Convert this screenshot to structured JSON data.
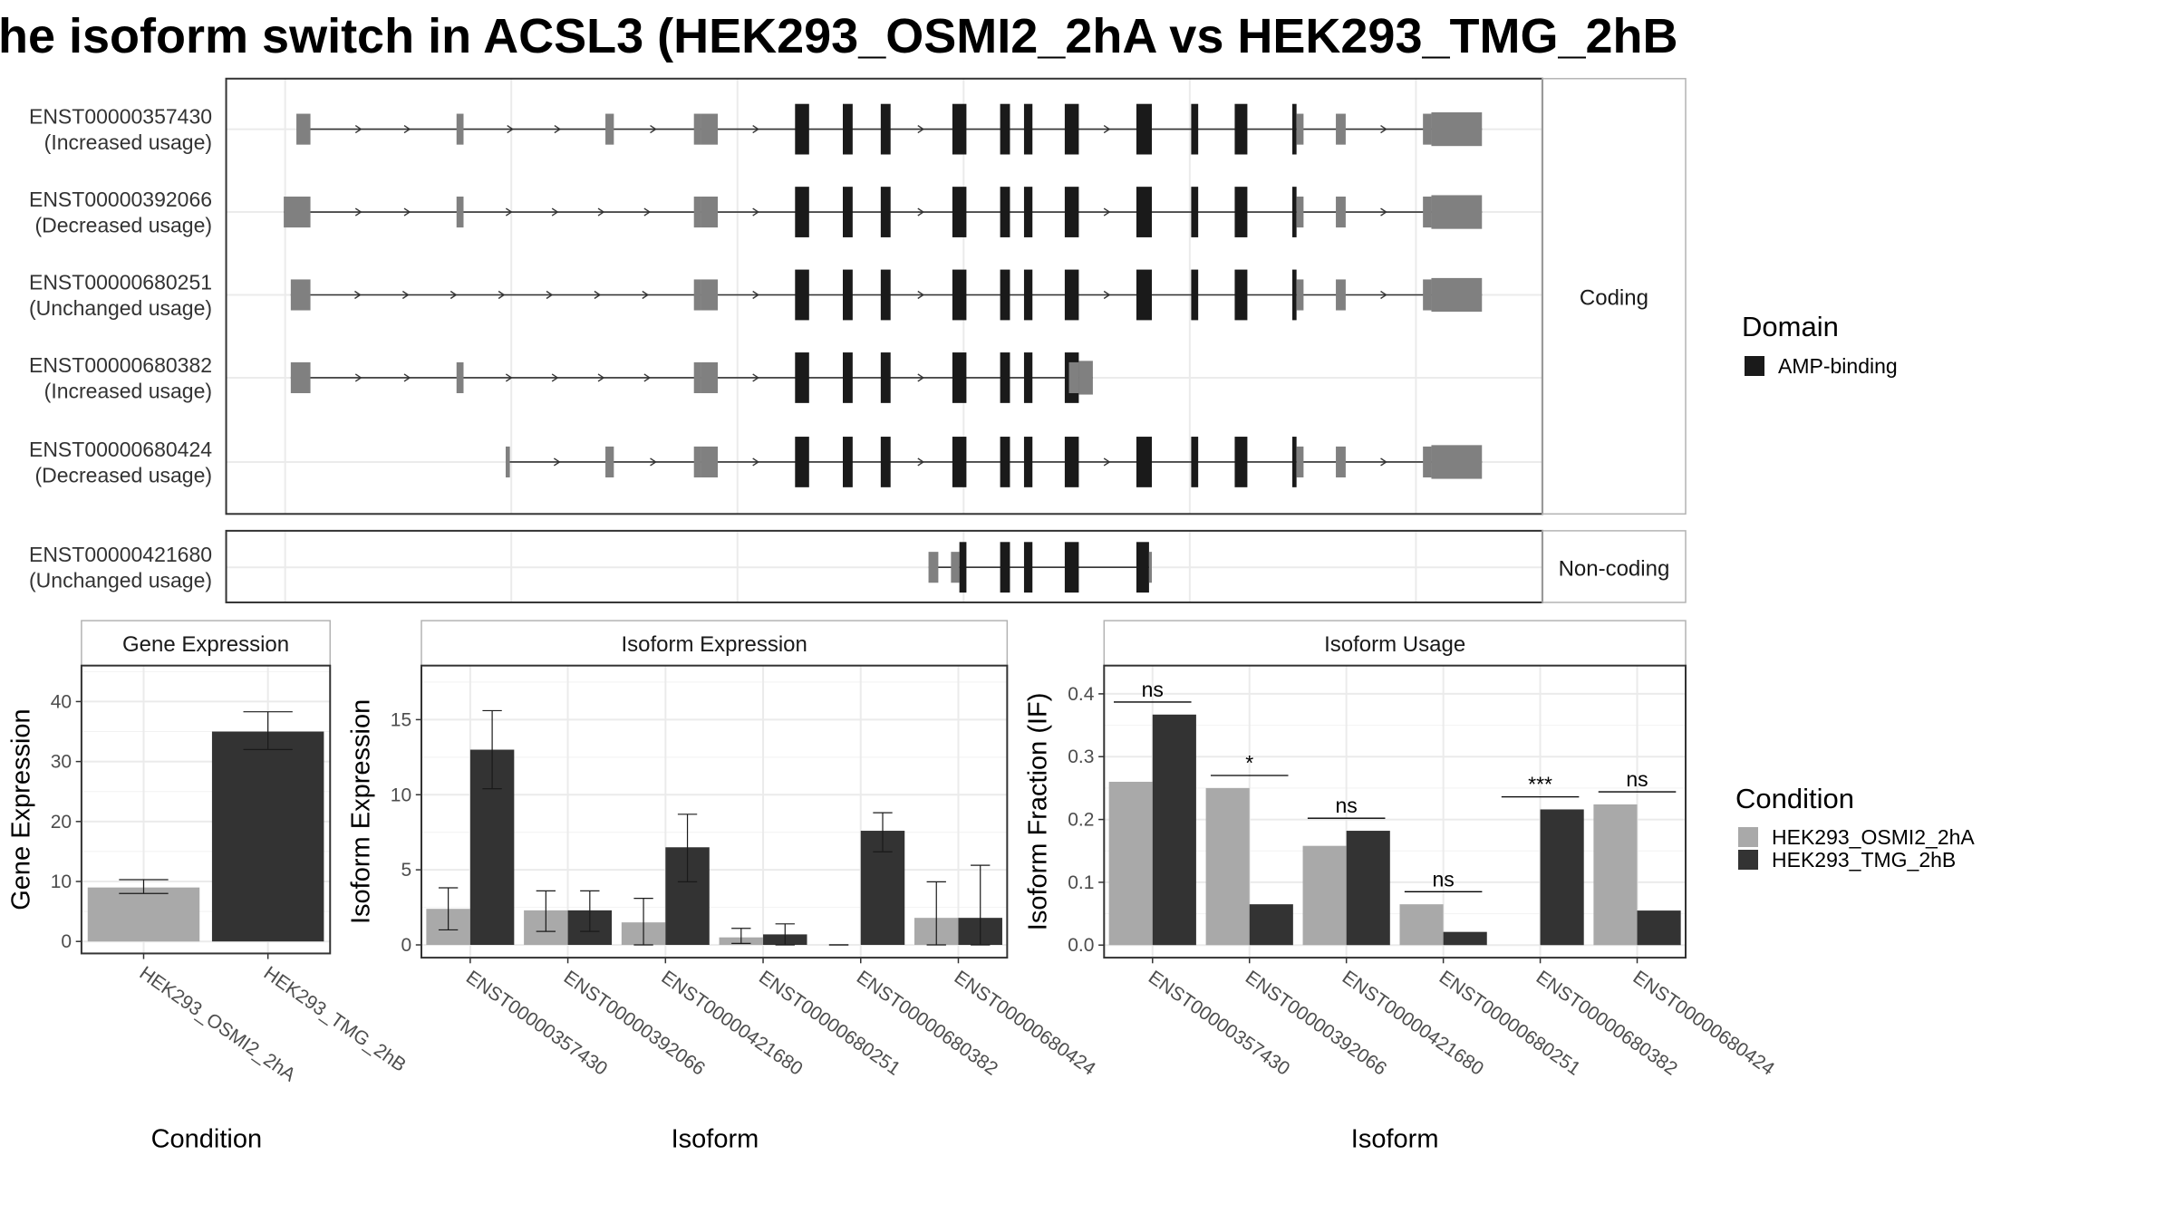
{
  "title": "he isoform switch in ACSL3 (HEK293_OSMI2_2hA vs HEK293_TMG_2hB",
  "colors": {
    "utr": "#808080",
    "domain": "#1a1a1a",
    "cond1": "#a9a9a9",
    "cond2": "#333333",
    "grid": "#ebebeb",
    "panel_border": "#333333",
    "strip_border": "#b3b3b3"
  },
  "structure": {
    "strips": {
      "coding": "Coding",
      "noncoding": "Non-coding"
    },
    "transcripts": [
      {
        "id": "ENST00000357430",
        "usage": "(Increased usage)",
        "group": "coding",
        "span": [
          214,
          1055
        ],
        "intron_arrows": true,
        "exons": [
          [
            211,
            221,
            "utr"
          ],
          [
            325,
            330,
            "utr"
          ],
          [
            431,
            437,
            "utr"
          ],
          [
            494,
            499,
            "utr"
          ],
          [
            499,
            511,
            "utr"
          ],
          [
            566,
            576,
            "cds"
          ],
          [
            600,
            607,
            "cds"
          ],
          [
            627,
            634,
            "cds"
          ],
          [
            678,
            688,
            "cds"
          ],
          [
            712,
            719,
            "cds"
          ],
          [
            729,
            735,
            "cds"
          ],
          [
            758,
            768,
            "cds"
          ],
          [
            809,
            820,
            "cds"
          ],
          [
            848,
            853,
            "cds"
          ],
          [
            879,
            888,
            "cds"
          ],
          [
            920,
            923,
            "cds"
          ],
          [
            923,
            928,
            "utr"
          ],
          [
            951,
            958,
            "utr"
          ],
          [
            1013,
            1019,
            "utr"
          ],
          [
            1019,
            1055,
            "utr-thick"
          ]
        ]
      },
      {
        "id": "ENST00000392066",
        "usage": "(Decreased usage)",
        "group": "coding",
        "span": [
          202,
          1055
        ],
        "intron_arrows": true,
        "exons": [
          [
            202,
            221,
            "utr"
          ],
          [
            325,
            330,
            "utr"
          ],
          [
            494,
            499,
            "utr"
          ],
          [
            499,
            511,
            "utr"
          ],
          [
            566,
            576,
            "cds"
          ],
          [
            600,
            607,
            "cds"
          ],
          [
            627,
            634,
            "cds"
          ],
          [
            678,
            688,
            "cds"
          ],
          [
            712,
            719,
            "cds"
          ],
          [
            729,
            735,
            "cds"
          ],
          [
            758,
            768,
            "cds"
          ],
          [
            809,
            820,
            "cds"
          ],
          [
            848,
            853,
            "cds"
          ],
          [
            879,
            888,
            "cds"
          ],
          [
            920,
            923,
            "cds"
          ],
          [
            923,
            928,
            "utr"
          ],
          [
            951,
            958,
            "utr"
          ],
          [
            1013,
            1019,
            "utr"
          ],
          [
            1019,
            1055,
            "utr-thick"
          ]
        ]
      },
      {
        "id": "ENST00000680251",
        "usage": "(Unchanged usage)",
        "group": "coding",
        "span": [
          207,
          1055
        ],
        "intron_arrows": true,
        "exons": [
          [
            207,
            221,
            "utr"
          ],
          [
            494,
            499,
            "utr"
          ],
          [
            499,
            511,
            "utr"
          ],
          [
            566,
            576,
            "cds"
          ],
          [
            600,
            607,
            "cds"
          ],
          [
            627,
            634,
            "cds"
          ],
          [
            678,
            688,
            "cds"
          ],
          [
            712,
            719,
            "cds"
          ],
          [
            729,
            735,
            "cds"
          ],
          [
            758,
            768,
            "cds"
          ],
          [
            809,
            820,
            "cds"
          ],
          [
            848,
            853,
            "cds"
          ],
          [
            879,
            888,
            "cds"
          ],
          [
            920,
            923,
            "cds"
          ],
          [
            923,
            928,
            "utr"
          ],
          [
            951,
            958,
            "utr"
          ],
          [
            1013,
            1019,
            "utr"
          ],
          [
            1019,
            1055,
            "utr-thick"
          ]
        ]
      },
      {
        "id": "ENST00000680382",
        "usage": "(Increased usage)",
        "group": "coding",
        "span": [
          207,
          778
        ],
        "intron_arrows": true,
        "exons": [
          [
            207,
            221,
            "utr"
          ],
          [
            325,
            330,
            "utr"
          ],
          [
            494,
            499,
            "utr"
          ],
          [
            499,
            511,
            "utr"
          ],
          [
            566,
            576,
            "cds"
          ],
          [
            600,
            607,
            "cds"
          ],
          [
            627,
            634,
            "cds"
          ],
          [
            678,
            688,
            "cds"
          ],
          [
            712,
            719,
            "cds"
          ],
          [
            729,
            735,
            "cds"
          ],
          [
            758,
            768,
            "cds"
          ],
          [
            761,
            768,
            "utr"
          ],
          [
            768,
            778,
            "utr-thick"
          ]
        ]
      },
      {
        "id": "ENST00000680424",
        "usage": "(Decreased usage)",
        "group": "coding",
        "span": [
          360,
          1055
        ],
        "intron_arrows": true,
        "exons": [
          [
            360,
            363,
            "utr"
          ],
          [
            431,
            437,
            "utr"
          ],
          [
            494,
            499,
            "utr"
          ],
          [
            499,
            511,
            "utr"
          ],
          [
            566,
            576,
            "cds"
          ],
          [
            600,
            607,
            "cds"
          ],
          [
            627,
            634,
            "cds"
          ],
          [
            678,
            688,
            "cds"
          ],
          [
            712,
            719,
            "cds"
          ],
          [
            729,
            735,
            "cds"
          ],
          [
            758,
            768,
            "cds"
          ],
          [
            809,
            820,
            "cds"
          ],
          [
            848,
            853,
            "cds"
          ],
          [
            879,
            888,
            "cds"
          ],
          [
            920,
            923,
            "cds"
          ],
          [
            923,
            928,
            "utr"
          ],
          [
            951,
            958,
            "utr"
          ],
          [
            1013,
            1019,
            "utr"
          ],
          [
            1019,
            1055,
            "utr-thick"
          ]
        ]
      },
      {
        "id": "ENST00000421680",
        "usage": "(Unchanged usage)",
        "group": "noncoding",
        "span": [
          661,
          820
        ],
        "intron_arrows": false,
        "exons": [
          [
            661,
            668,
            "utr"
          ],
          [
            677,
            683,
            "utr"
          ],
          [
            683,
            688,
            "cds"
          ],
          [
            712,
            719,
            "cds"
          ],
          [
            729,
            735,
            "cds"
          ],
          [
            758,
            768,
            "cds"
          ],
          [
            809,
            818,
            "cds"
          ],
          [
            818,
            820,
            "utr"
          ]
        ]
      }
    ]
  },
  "legend_domain": {
    "title": "Domain",
    "items": [
      "AMP-binding"
    ]
  },
  "legend_condition": {
    "title": "Condition",
    "items": [
      "HEK293_OSMI2_2hA",
      "HEK293_TMG_2hB"
    ]
  },
  "chart_data": [
    {
      "type": "bar",
      "title": "Gene Expression",
      "xlabel": "Condition",
      "ylabel": "Gene Expression",
      "categories": [
        "HEK293_OSMI2_2hA",
        "HEK293_TMG_2hB"
      ],
      "values": [
        9.0,
        35.0
      ],
      "errors": [
        [
          8.0,
          10.3
        ],
        [
          32.0,
          38.3
        ]
      ],
      "ylim": [
        -2,
        46
      ],
      "yticks": [
        0,
        10,
        20,
        30,
        40
      ]
    },
    {
      "type": "bar",
      "title": "Isoform Expression",
      "xlabel": "Isoform",
      "ylabel": "Isoform Expression",
      "categories": [
        "ENST00000357430",
        "ENST00000392066",
        "ENST00000421680",
        "ENST00000680251",
        "ENST00000680382",
        "ENST00000680424"
      ],
      "series": [
        {
          "name": "HEK293_OSMI2_2hA",
          "values": [
            2.4,
            2.3,
            1.5,
            0.5,
            0.0,
            1.8
          ],
          "errors": [
            [
              1.0,
              3.8
            ],
            [
              0.9,
              3.6
            ],
            [
              0.0,
              3.1
            ],
            [
              0.1,
              1.1
            ],
            [
              0.0,
              0.0
            ],
            [
              0.0,
              4.2
            ]
          ]
        },
        {
          "name": "HEK293_TMG_2hB",
          "values": [
            13.0,
            2.3,
            6.5,
            0.7,
            7.6,
            1.8
          ],
          "errors": [
            [
              10.4,
              15.6
            ],
            [
              0.9,
              3.6
            ],
            [
              4.2,
              8.7
            ],
            [
              0.0,
              1.4
            ],
            [
              6.2,
              8.8
            ],
            [
              0.0,
              5.3
            ]
          ]
        }
      ],
      "ylim": [
        -0.85,
        18.6
      ],
      "yticks": [
        0,
        5,
        10,
        15
      ]
    },
    {
      "type": "bar",
      "title": "Isoform Usage",
      "xlabel": "Isoform",
      "ylabel": "Isoform Fraction (IF)",
      "categories": [
        "ENST00000357430",
        "ENST00000392066",
        "ENST00000421680",
        "ENST00000680251",
        "ENST00000680382",
        "ENST00000680424"
      ],
      "series": [
        {
          "name": "HEK293_OSMI2_2hA",
          "values": [
            0.26,
            0.25,
            0.158,
            0.065,
            0.0,
            0.224
          ]
        },
        {
          "name": "HEK293_TMG_2hB",
          "values": [
            0.367,
            0.065,
            0.182,
            0.021,
            0.216,
            0.055
          ]
        }
      ],
      "significance": [
        {
          "label": "ns",
          "y": 0.387
        },
        {
          "label": "*",
          "y": 0.27
        },
        {
          "label": "ns",
          "y": 0.202
        },
        {
          "label": "ns",
          "y": 0.085
        },
        {
          "label": "***",
          "y": 0.236
        },
        {
          "label": "ns",
          "y": 0.244
        }
      ],
      "ylim": [
        -0.02,
        0.445
      ],
      "yticks": [
        0.0,
        0.1,
        0.2,
        0.3,
        0.4
      ]
    }
  ]
}
